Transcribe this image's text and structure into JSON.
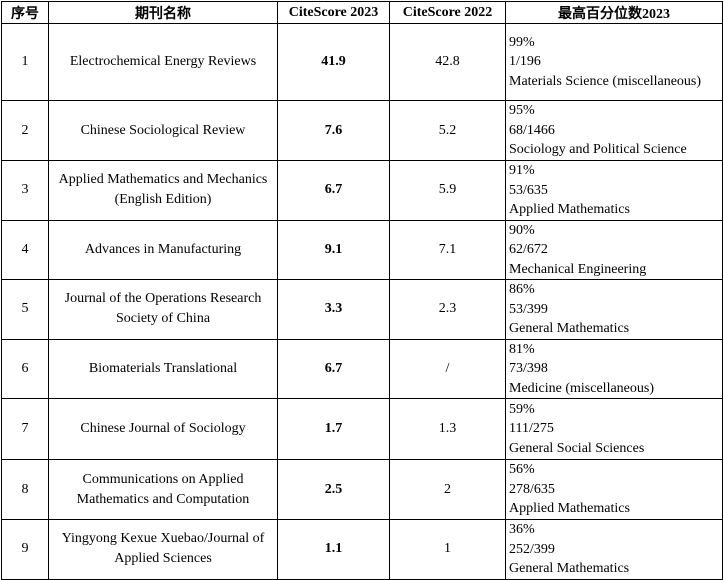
{
  "headers": [
    "序号",
    "期刊名称",
    "CiteScore 2023",
    "CiteScore 2022",
    "最高百分位数2023"
  ],
  "rows": [
    {
      "no": "1",
      "name": "Electrochemical Energy Reviews",
      "cs2023": "41.9",
      "cs2022": "42.8",
      "pct": "99%",
      "rank": "1/196",
      "field": "Materials Science (miscellaneous)"
    },
    {
      "no": "2",
      "name": "Chinese Sociological Review",
      "cs2023": "7.6",
      "cs2022": "5.2",
      "pct": "95%",
      "rank": "68/1466",
      "field": "Sociology and Political Science"
    },
    {
      "no": "3",
      "name": "Applied Mathematics and Mechanics (English Edition)",
      "cs2023": "6.7",
      "cs2022": "5.9",
      "pct": "91%",
      "rank": "53/635",
      "field": "Applied Mathematics"
    },
    {
      "no": "4",
      "name": "Advances in Manufacturing",
      "cs2023": "9.1",
      "cs2022": "7.1",
      "pct": "90%",
      "rank": "62/672",
      "field": "Mechanical Engineering"
    },
    {
      "no": "5",
      "name": "Journal of the Operations Research Society of China",
      "cs2023": "3.3",
      "cs2022": "2.3",
      "pct": "86%",
      "rank": "53/399",
      "field": "General Mathematics"
    },
    {
      "no": "6",
      "name": "Biomaterials Translational",
      "cs2023": "6.7",
      "cs2022": "/",
      "pct": "81%",
      "rank": "73/398",
      "field": "Medicine (miscellaneous)"
    },
    {
      "no": "7",
      "name": "Chinese Journal of Sociology",
      "cs2023": "1.7",
      "cs2022": "1.3",
      "pct": "59%",
      "rank": "111/275",
      "field": "General Social Sciences"
    },
    {
      "no": "8",
      "name": "Communications on Applied Mathematics and Computation",
      "cs2023": "2.5",
      "cs2022": "2",
      "pct": "56%",
      "rank": "278/635",
      "field": "Applied Mathematics"
    },
    {
      "no": "9",
      "name": "Yingyong Kexue Xuebao/Journal of Applied Sciences",
      "cs2023": "1.1",
      "cs2022": "1",
      "pct": "36%",
      "rank": "252/399",
      "field": "General Mathematics"
    }
  ]
}
